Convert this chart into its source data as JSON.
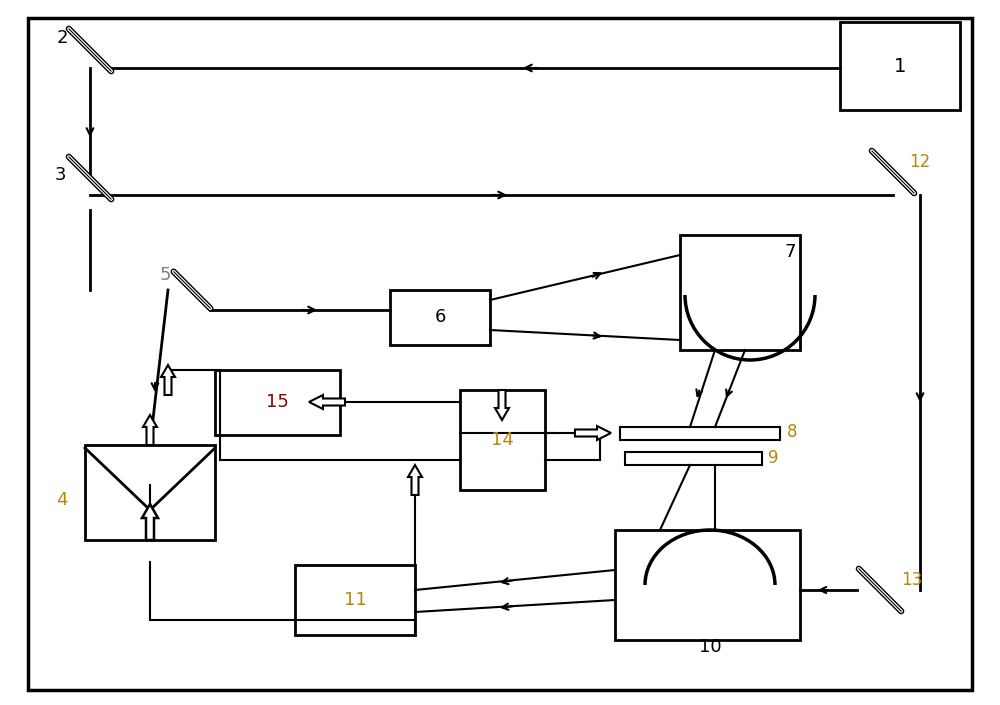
{
  "bg": "#ffffff",
  "lc": "#000000",
  "lw": 1.5,
  "lw_thick": 2.0,
  "label_colors": {
    "1": "#000000",
    "2": "#000000",
    "3": "#000000",
    "4": "#b8860b",
    "5": "#808080",
    "6": "#000000",
    "7": "#000000",
    "8": "#b8860b",
    "9": "#b8860b",
    "10": "#000000",
    "11": "#b8860b",
    "12": "#b8860b",
    "13": "#b8860b",
    "14": "#b8860b",
    "15": "#8b0000"
  },
  "fig_w": 10.0,
  "fig_h": 7.05,
  "dpi": 100
}
